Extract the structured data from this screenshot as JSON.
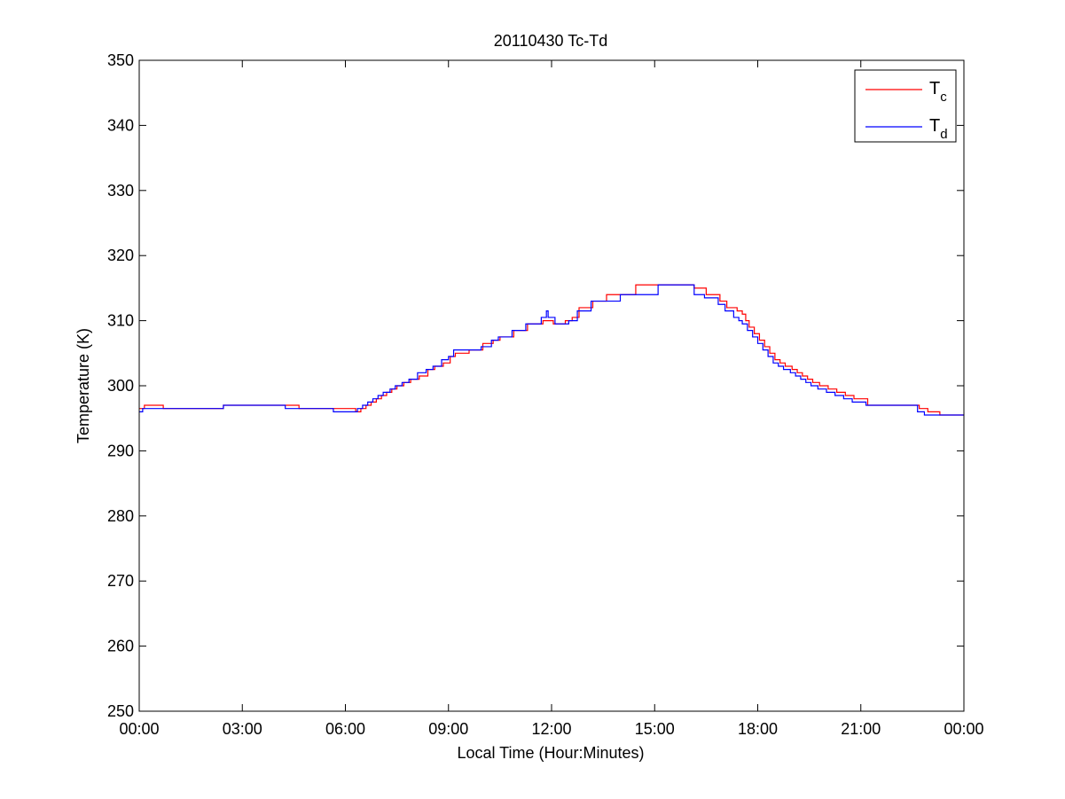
{
  "chart_data": {
    "type": "line",
    "title": "20110430 Tc-Td",
    "xlabel": "Local Time (Hour:Minutes)",
    "ylabel": "Temperature (K)",
    "x_unit": "hours",
    "xlim": [
      0,
      24
    ],
    "ylim": [
      250,
      350
    ],
    "x_ticks": [
      0,
      3,
      6,
      9,
      12,
      15,
      18,
      21,
      24
    ],
    "x_tick_labels": [
      "00:00",
      "03:00",
      "06:00",
      "09:00",
      "12:00",
      "15:00",
      "18:00",
      "21:00",
      "00:00"
    ],
    "y_ticks": [
      250,
      260,
      270,
      280,
      290,
      300,
      310,
      320,
      330,
      340,
      350
    ],
    "y_tick_labels": [
      "250",
      "260",
      "270",
      "280",
      "290",
      "300",
      "310",
      "320",
      "330",
      "340",
      "350"
    ],
    "grid": false,
    "legend_position": "top-right",
    "step": true,
    "series": [
      {
        "name": "Tc",
        "legend_main": "T",
        "legend_sub": "c",
        "color": "#ff0000",
        "x": [
          0,
          0.15,
          0.7,
          2.45,
          4.35,
          4.65,
          5.7,
          6.3,
          6.45,
          6.6,
          6.75,
          6.9,
          7.05,
          7.2,
          7.35,
          7.5,
          7.7,
          7.9,
          8.15,
          8.4,
          8.6,
          8.85,
          9.05,
          9.2,
          9.6,
          10.0,
          10.3,
          10.5,
          10.9,
          11.3,
          11.75,
          12.05,
          12.4,
          12.6,
          12.8,
          13.2,
          13.6,
          13.9,
          14.45,
          15.05,
          15.6,
          16.15,
          16.5,
          16.9,
          17.1,
          17.4,
          17.55,
          17.65,
          17.75,
          17.9,
          18.05,
          18.2,
          18.35,
          18.5,
          18.65,
          18.8,
          19.0,
          19.15,
          19.3,
          19.45,
          19.6,
          19.8,
          20.05,
          20.3,
          20.55,
          20.8,
          21.2,
          22.7,
          22.95,
          23.3,
          24.0
        ],
        "y": [
          296.5,
          297.0,
          296.5,
          297.0,
          297.0,
          296.5,
          296.5,
          296.0,
          296.5,
          297.0,
          297.5,
          298.0,
          298.5,
          299.0,
          299.5,
          300.0,
          300.5,
          301.0,
          301.5,
          302.5,
          303.0,
          303.5,
          304.5,
          305.0,
          305.5,
          306.5,
          307.0,
          307.5,
          308.5,
          309.5,
          310.0,
          309.5,
          310.0,
          310.5,
          312.0,
          313.0,
          314.0,
          314.0,
          315.5,
          315.5,
          315.5,
          315.0,
          314.0,
          313.0,
          312.0,
          311.5,
          311.0,
          310.0,
          309.0,
          308.0,
          307.0,
          306.0,
          305.0,
          304.0,
          303.5,
          303.0,
          302.5,
          302.0,
          301.5,
          301.0,
          300.5,
          300.0,
          299.5,
          299.0,
          298.5,
          298.0,
          297.0,
          296.5,
          296.0,
          295.5,
          295.5
        ]
      },
      {
        "name": "Td",
        "legend_main": "T",
        "legend_sub": "d",
        "color": "#0000ff",
        "x": [
          0,
          0.1,
          2.45,
          4.25,
          5.65,
          6.2,
          6.35,
          6.5,
          6.65,
          6.8,
          6.95,
          7.1,
          7.3,
          7.45,
          7.65,
          7.85,
          8.1,
          8.35,
          8.55,
          8.8,
          9.0,
          9.15,
          9.55,
          9.95,
          10.25,
          10.45,
          10.85,
          11.25,
          11.7,
          11.85,
          11.9,
          12.1,
          12.5,
          12.75,
          13.15,
          13.55,
          14.0,
          15.0,
          15.1,
          16.15,
          16.45,
          16.85,
          17.05,
          17.3,
          17.45,
          17.55,
          17.7,
          17.85,
          18.0,
          18.15,
          18.3,
          18.45,
          18.6,
          18.75,
          18.95,
          19.1,
          19.25,
          19.4,
          19.55,
          19.75,
          20.0,
          20.25,
          20.5,
          20.75,
          21.15,
          22.65,
          22.85,
          23.2,
          24.0
        ],
        "y": [
          296.0,
          296.5,
          297.0,
          296.5,
          296.0,
          296.0,
          296.5,
          297.0,
          297.5,
          298.0,
          298.5,
          299.0,
          299.5,
          300.0,
          300.5,
          301.0,
          302.0,
          302.5,
          303.0,
          304.0,
          304.5,
          305.5,
          305.5,
          306.0,
          307.0,
          307.5,
          308.5,
          309.5,
          310.5,
          311.5,
          310.5,
          309.5,
          310.0,
          311.5,
          313.0,
          313.0,
          314.0,
          314.0,
          315.5,
          314.0,
          313.5,
          312.5,
          311.5,
          310.5,
          310.0,
          309.5,
          308.5,
          307.5,
          306.5,
          305.5,
          304.5,
          303.5,
          303.0,
          302.5,
          302.0,
          301.5,
          301.0,
          300.5,
          300.0,
          299.5,
          299.0,
          298.5,
          298.0,
          297.5,
          297.0,
          296.0,
          295.5,
          295.5,
          295.5
        ]
      }
    ]
  }
}
